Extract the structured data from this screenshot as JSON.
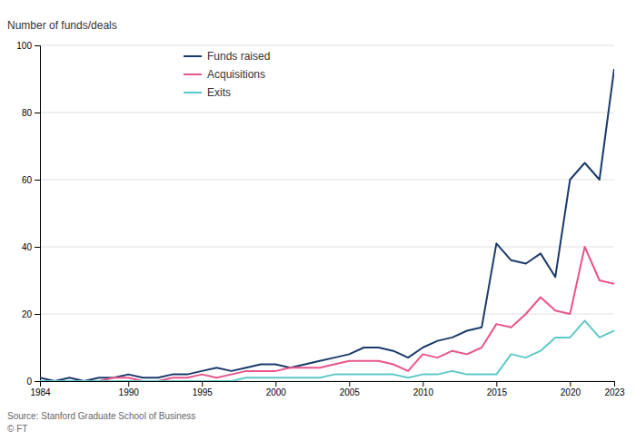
{
  "chart_data": {
    "type": "line",
    "ylabel": "Number of funds/deals",
    "annotations": [
      "Source: Stanford Graduate School of Business",
      "© FT"
    ],
    "x": [
      1984,
      1985,
      1986,
      1987,
      1988,
      1989,
      1990,
      1991,
      1992,
      1993,
      1994,
      1995,
      1996,
      1997,
      1998,
      1999,
      2000,
      2001,
      2002,
      2003,
      2004,
      2005,
      2006,
      2007,
      2008,
      2009,
      2010,
      2011,
      2012,
      2013,
      2014,
      2015,
      2016,
      2017,
      2018,
      2019,
      2020,
      2021,
      2022,
      2023
    ],
    "series": [
      {
        "name": "Funds raised",
        "color": "#1a3a6b",
        "values": [
          1,
          0,
          1,
          0,
          1,
          1,
          2,
          1,
          1,
          2,
          2,
          3,
          4,
          3,
          4,
          5,
          5,
          4,
          5,
          6,
          7,
          8,
          10,
          10,
          9,
          7,
          10,
          12,
          13,
          15,
          16,
          41,
          36,
          35,
          38,
          31,
          60,
          65,
          60,
          93
        ]
      },
      {
        "name": "Acquisitions",
        "color": "#e8558a",
        "values": [
          0,
          0,
          0,
          0,
          0,
          1,
          1,
          0,
          0,
          1,
          1,
          2,
          1,
          2,
          3,
          3,
          3,
          4,
          4,
          4,
          5,
          6,
          6,
          6,
          5,
          3,
          8,
          7,
          9,
          8,
          10,
          17,
          16,
          20,
          25,
          21,
          20,
          40,
          30,
          29
        ]
      },
      {
        "name": "Exits",
        "color": "#5ec8c8",
        "values": [
          0,
          0,
          0,
          0,
          0,
          0,
          0,
          0,
          0,
          0,
          0,
          0,
          0,
          0,
          1,
          1,
          1,
          1,
          1,
          1,
          2,
          2,
          2,
          2,
          2,
          1,
          2,
          2,
          3,
          2,
          2,
          2,
          8,
          7,
          9,
          13,
          13,
          18,
          13,
          15
        ]
      }
    ],
    "xlim": [
      1984,
      2023
    ],
    "xticks": [
      1984,
      1990,
      1995,
      2000,
      2005,
      2010,
      2015,
      2020,
      2023
    ],
    "ylim": [
      0,
      100
    ],
    "yticks": [
      0,
      20,
      40,
      60,
      80,
      100
    ],
    "grid": true,
    "legend": "top-left"
  }
}
